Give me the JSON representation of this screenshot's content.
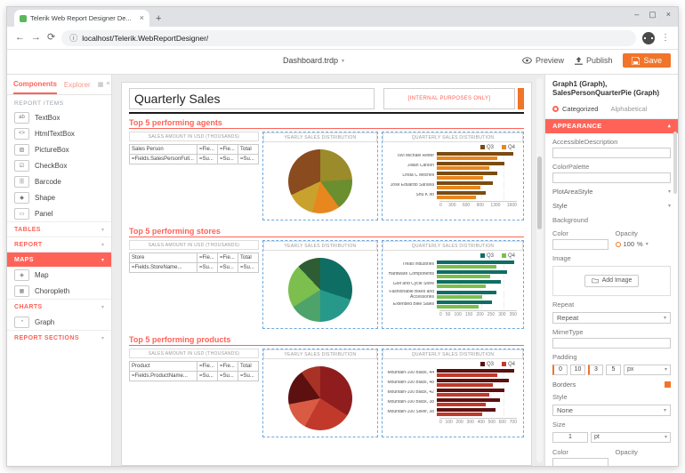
{
  "browser": {
    "tab_title": "Telerik Web Report Designer De...",
    "url": "localhost/Telerik.WebReportDesigner/"
  },
  "toolbar": {
    "document_name": "Dashboard.trdp",
    "preview_label": "Preview",
    "publish_label": "Publish",
    "save_label": "Save"
  },
  "sidebar": {
    "tabs": [
      {
        "label": "Components"
      },
      {
        "label": "Explorer"
      }
    ],
    "report_items_header": "REPORT ITEMS",
    "report_items": [
      {
        "label": "TextBox",
        "icon": "textbox-icon",
        "glyph": "ab"
      },
      {
        "label": "HtmlTextBox",
        "icon": "html-textbox-icon",
        "glyph": "<>"
      },
      {
        "label": "PictureBox",
        "icon": "picturebox-icon",
        "glyph": "▨"
      },
      {
        "label": "CheckBox",
        "icon": "checkbox-icon",
        "glyph": "☑"
      },
      {
        "label": "Barcode",
        "icon": "barcode-icon",
        "glyph": "|||"
      },
      {
        "label": "Shape",
        "icon": "shape-icon",
        "glyph": "◆"
      },
      {
        "label": "Panel",
        "icon": "panel-icon",
        "glyph": "▭"
      }
    ],
    "groups": [
      {
        "label": "TABLES",
        "style": "link",
        "items": []
      },
      {
        "label": "REPORT",
        "style": "link",
        "items": []
      },
      {
        "label": "MAPS",
        "style": "active",
        "items": [
          {
            "label": "Map",
            "icon": "map-icon",
            "glyph": "◈"
          },
          {
            "label": "Choropleth",
            "icon": "choropleth-icon",
            "glyph": "▦"
          }
        ]
      },
      {
        "label": "CHARTS",
        "style": "link",
        "items": [
          {
            "label": "Graph",
            "icon": "graph-icon",
            "glyph": "◔"
          }
        ]
      },
      {
        "label": "REPORT SECTIONS",
        "style": "link",
        "items": []
      }
    ]
  },
  "canvas": {
    "report_title": "Quarterly Sales",
    "internal_note": "[INTERNAL PURPOSES ONLY]",
    "sections": [
      {
        "heading": "Top 5 performing agents",
        "table": {
          "header": "SALES AMOUNT IN USD (THOUSANDS)",
          "field_label": "Sales Person",
          "col_headers": [
            "=Fie...",
            "=Fie...",
            "Total"
          ],
          "field_value": "=Fields.SalesPersonFull...",
          "sums": [
            "=Su...",
            "=Su...",
            "=Su..."
          ]
        },
        "pie": {
          "header": "YEARLY SALES DISTRIBUTION",
          "slices": [
            {
              "color": "#9b8b2a",
              "pct": 24
            },
            {
              "color": "#6b8f2e",
              "pct": 16
            },
            {
              "color": "#e8871e",
              "pct": 14
            },
            {
              "color": "#c9a22e",
              "pct": 14
            },
            {
              "color": "#8a4b1e",
              "pct": 32
            }
          ]
        },
        "bars": {
          "header": "QUARTERLY SALES DISTRIBUTION",
          "legend": [
            {
              "name": "Q3",
              "color": "#7a4b12"
            },
            {
              "name": "Q4",
              "color": "#e8871e"
            }
          ],
          "categories": [
            "Tsvi Michael Reiter",
            "Jillian Carson",
            "Linda C Mitchell",
            "Jose Eduardo Saraiva",
            "Shu K Ito"
          ],
          "series": [
            {
              "name": "Q3",
              "color": "#7a4b12",
              "values": [
                1500,
                1330,
                1180,
                1090,
                950
              ]
            },
            {
              "name": "Q4",
              "color": "#e8871e",
              "values": [
                1180,
                1030,
                900,
                850,
                760
              ]
            }
          ],
          "xmax": 1600,
          "xticks": [
            "0",
            "300",
            "600",
            "900",
            "1300",
            "1600"
          ]
        }
      },
      {
        "heading": "Top 5 performing stores",
        "table": {
          "header": "SALES AMOUNT IN USD (THOUSANDS)",
          "field_label": "Store",
          "col_headers": [
            "=Fie...",
            "=Fie...",
            "Total"
          ],
          "field_value": "=Fields.StoreName...",
          "sums": [
            "=Su...",
            "=Su...",
            "=Su..."
          ]
        },
        "pie": {
          "header": "YEARLY SALES DISTRIBUTION",
          "slices": [
            {
              "color": "#0f6e64",
              "pct": 30
            },
            {
              "color": "#27998b",
              "pct": 20
            },
            {
              "color": "#4ea36b",
              "pct": 16
            },
            {
              "color": "#7cbf4e",
              "pct": 22
            },
            {
              "color": "#2e5d34",
              "pct": 12
            }
          ]
        },
        "bars": {
          "header": "QUARTERLY SALES DISTRIBUTION",
          "legend": [
            {
              "name": "Q3",
              "color": "#0f6e64"
            },
            {
              "name": "Q4",
              "color": "#7cbf4e"
            }
          ],
          "categories": [
            "Tread Industries",
            "Hardware Components",
            "Golf and Cycle Store",
            "Fashionable Bikes and Accessories",
            "Extended Bike Sales"
          ],
          "series": [
            {
              "name": "Q3",
              "color": "#0f6e64",
              "values": [
                330,
                300,
                275,
                255,
                235
              ]
            },
            {
              "name": "Q4",
              "color": "#7cbf4e",
              "values": [
                255,
                230,
                210,
                195,
                180
              ]
            }
          ],
          "xmax": 350,
          "xticks": [
            "0",
            "50",
            "100",
            "150",
            "200",
            "250",
            "300",
            "350"
          ]
        }
      },
      {
        "heading": "Top 5 performing products",
        "table": {
          "header": "SALES AMOUNT IN USD (THOUSANDS)",
          "field_label": "Product",
          "col_headers": [
            "=Fie...",
            "=Fie...",
            "Total"
          ],
          "field_value": "=Fields.ProductName...",
          "sums": [
            "=Su...",
            "=Su...",
            "=Su..."
          ]
        },
        "pie": {
          "header": "YEARLY SALES DISTRIBUTION",
          "slices": [
            {
              "color": "#8f1d1d",
              "pct": 34
            },
            {
              "color": "#c0392b",
              "pct": 24
            },
            {
              "color": "#d95b43",
              "pct": 14
            },
            {
              "color": "#5c1010",
              "pct": 18
            },
            {
              "color": "#a93226",
              "pct": 10
            }
          ]
        },
        "bars": {
          "header": "QUARTERLY SALES DISTRIBUTION",
          "legend": [
            {
              "name": "Q3",
              "color": "#5c1010"
            },
            {
              "name": "Q4",
              "color": "#c0392b"
            }
          ],
          "categories": [
            "Mountain-100 Black, 44",
            "Mountain-100 Black, 48",
            "Mountain-100 Black, 42",
            "Mountain-100 Black, 38",
            "Mountain-100 Silver, 38"
          ],
          "series": [
            {
              "name": "Q3",
              "color": "#5c1010",
              "values": [
                660,
                615,
                575,
                540,
                500
              ]
            },
            {
              "name": "Q4",
              "color": "#c0392b",
              "values": [
                520,
                480,
                450,
                420,
                385
              ]
            }
          ],
          "xmax": 700,
          "xticks": [
            "0",
            "100",
            "200",
            "300",
            "400",
            "500",
            "600",
            "700"
          ]
        }
      }
    ]
  },
  "inspector": {
    "title": "Graph1 (Graph), SalesPersonQuarterPie (Graph)",
    "modes": {
      "categorized": "Categorized",
      "alphabetical": "Alphabetical"
    },
    "appearance_header": "APPEARANCE",
    "accessible_description_label": "AccessibleDescription",
    "color_palette_label": "ColorPalette",
    "plot_area_style_label": "PlotAreaStyle",
    "style_label": "Style",
    "background_label": "Background",
    "color_label": "Color",
    "opacity_label": "Opacity",
    "opacity_value": "100",
    "opacity_unit": "%",
    "image_label": "Image",
    "add_image_label": "Add Image",
    "repeat_label": "Repeat",
    "repeat_value": "Repeat",
    "mime_type_label": "MimeType",
    "padding_label": "Padding",
    "padding_values": [
      "0",
      "10",
      "3",
      "5"
    ],
    "padding_unit": "px",
    "borders_label": "Borders",
    "border_style_label": "Style",
    "border_style_value": "None",
    "size_label": "Size",
    "size_value": "1",
    "size_unit": "pt",
    "footer_color_label": "Color",
    "footer_opacity_label": "Opacity"
  },
  "colors": {
    "accent": "#ff6358",
    "save_button": "#f0742a",
    "selection_dash": "#6fa8dc"
  }
}
